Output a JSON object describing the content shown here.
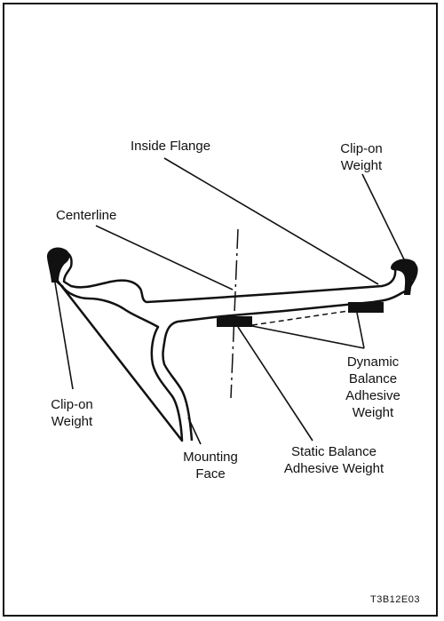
{
  "figure_id": "T3B12E03",
  "labels": {
    "inside_flange": "Inside Flange",
    "clip_on_weight_top": [
      "Clip-on",
      "Weight"
    ],
    "centerline": "Centerline",
    "clip_on_weight_left": [
      "Clip-on",
      "Weight"
    ],
    "dynamic_balance": [
      "Dynamic",
      "Balance",
      "Adhesive",
      "Weight"
    ],
    "mounting_face": [
      "Mounting",
      "Face"
    ],
    "static_balance": [
      "Static Balance",
      "Adhesive Weight"
    ]
  },
  "colors": {
    "ink": "#111111",
    "paper": "#ffffff"
  }
}
